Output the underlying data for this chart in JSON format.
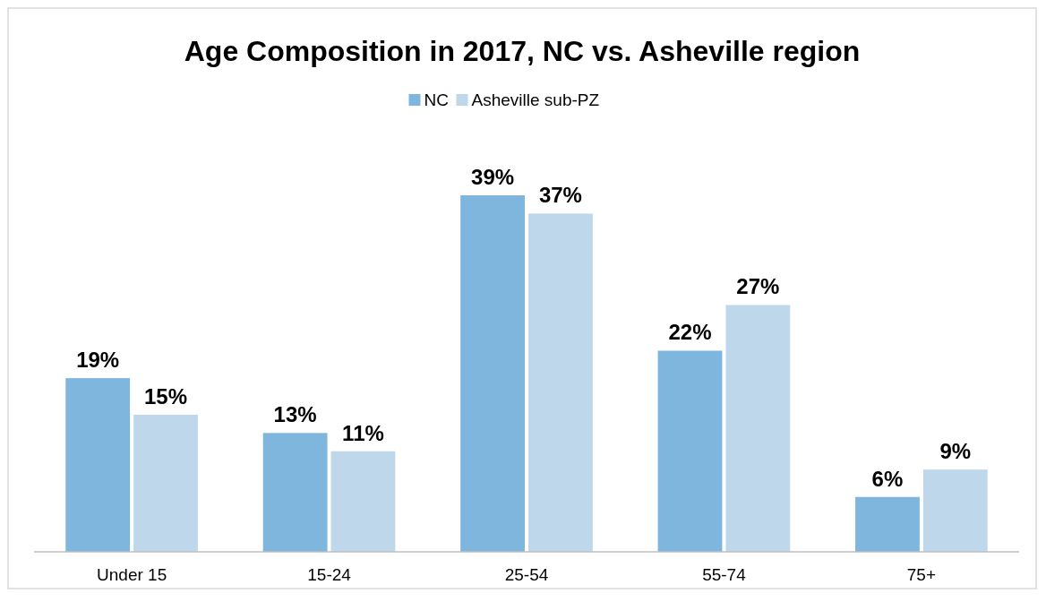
{
  "chart_data": {
    "type": "bar",
    "title": "Age Composition in 2017, NC vs. Asheville region",
    "categories": [
      "Under 15",
      "15-24",
      "25-54",
      "55-74",
      "75+"
    ],
    "series": [
      {
        "name": "NC",
        "color": "#7eb6de",
        "values": [
          19,
          13,
          39,
          22,
          6
        ],
        "value_labels": [
          "19%",
          "13%",
          "39%",
          "22%",
          "6%"
        ]
      },
      {
        "name": "Asheville sub-PZ",
        "color": "#bfd7ea",
        "values": [
          15,
          11,
          37,
          27,
          9
        ],
        "value_labels": [
          "15%",
          "11%",
          "37%",
          "27%",
          "9%"
        ]
      }
    ],
    "legend": "top"
  }
}
